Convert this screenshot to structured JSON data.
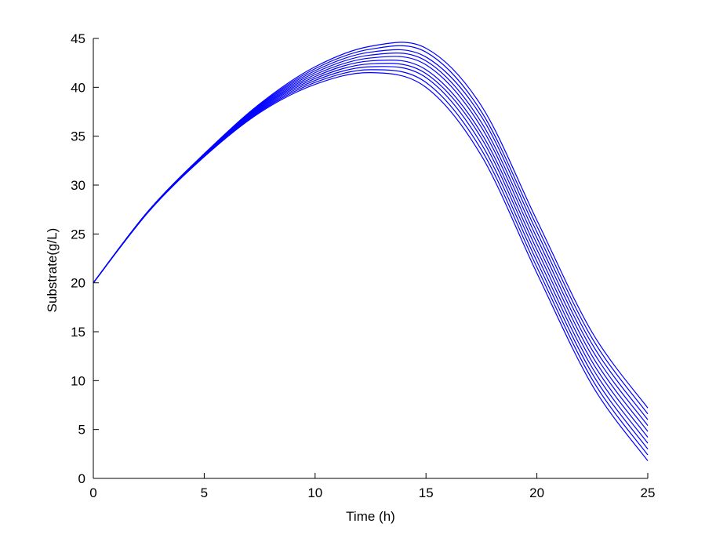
{
  "chart_data": {
    "type": "line",
    "title": "",
    "xlabel": "Time (h)",
    "ylabel": "Substrate(g/L)",
    "xlim": [
      0,
      25
    ],
    "ylim": [
      0,
      45
    ],
    "xticks": [
      0,
      5,
      10,
      15,
      20,
      25
    ],
    "yticks": [
      0,
      5,
      10,
      15,
      20,
      25,
      30,
      35,
      40,
      45
    ],
    "grid": false,
    "legend": "none",
    "line_color": "#0000ff",
    "x": [
      0,
      2.5,
      5,
      7.5,
      10,
      12.5,
      15,
      17.5,
      20,
      22.5,
      25
    ],
    "series": [
      {
        "values": [
          20,
          27.3,
          32.9,
          37.4,
          40.3,
          41.5,
          40.0,
          33.0,
          21.0,
          9.5,
          1.8
        ]
      },
      {
        "values": [
          20,
          27.3,
          32.9,
          37.5,
          40.5,
          41.8,
          40.5,
          33.6,
          21.6,
          10.1,
          2.4
        ]
      },
      {
        "values": [
          20,
          27.3,
          33.0,
          37.6,
          40.7,
          42.1,
          41.0,
          34.2,
          22.2,
          10.7,
          3.0
        ]
      },
      {
        "values": [
          20,
          27.3,
          33.0,
          37.7,
          40.9,
          42.4,
          41.4,
          34.8,
          22.8,
          11.3,
          3.6
        ]
      },
      {
        "values": [
          20,
          27.3,
          33.0,
          37.8,
          41.1,
          42.7,
          41.8,
          35.3,
          23.4,
          11.9,
          4.2
        ]
      },
      {
        "values": [
          20,
          27.4,
          33.1,
          37.9,
          41.3,
          43.0,
          42.3,
          35.9,
          24.0,
          12.5,
          4.8
        ]
      },
      {
        "values": [
          20,
          27.4,
          33.1,
          38.0,
          41.5,
          43.3,
          42.7,
          36.4,
          24.6,
          13.1,
          5.4
        ]
      },
      {
        "values": [
          20,
          27.4,
          33.1,
          38.1,
          41.7,
          43.6,
          43.1,
          37.0,
          25.2,
          13.7,
          6.0
        ]
      },
      {
        "values": [
          20,
          27.4,
          33.2,
          38.2,
          41.9,
          43.9,
          43.6,
          37.5,
          25.8,
          14.3,
          6.6
        ]
      },
      {
        "values": [
          20,
          27.4,
          33.2,
          38.3,
          42.1,
          44.2,
          44.0,
          38.1,
          26.4,
          14.9,
          7.2
        ]
      }
    ]
  }
}
